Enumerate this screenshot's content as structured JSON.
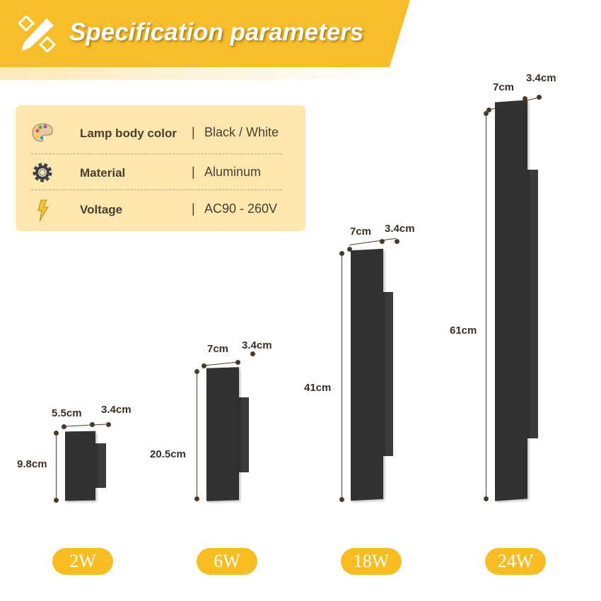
{
  "header": {
    "title": "Specification parameters",
    "icon": "pencil-ruler-icon",
    "color": "#f8bd2a"
  },
  "specs": [
    {
      "icon": "palette-icon",
      "label": "Lamp body color",
      "separator": "|",
      "value": "Black / White"
    },
    {
      "icon": "gear-icon",
      "label": "Material",
      "separator": "|",
      "value": "Aluminum"
    },
    {
      "icon": "lightning-icon",
      "label": "Voltage",
      "separator": "|",
      "value": "AC90 - 260V"
    }
  ],
  "models": [
    {
      "power": "2W",
      "width": "5.5cm",
      "depth": "3.4cm",
      "height": "9.8cm"
    },
    {
      "power": "6W",
      "width": "7cm",
      "depth": "3.4cm",
      "height": "20.5cm"
    },
    {
      "power": "18W",
      "width": "7cm",
      "depth": "3.4cm",
      "height": "41cm"
    },
    {
      "power": "24W",
      "width": "7cm",
      "depth": "3.4cm",
      "height": "61cm"
    }
  ],
  "colors": {
    "lamp": "#303133",
    "pill": "#f8bd22",
    "panel_bg": "#fde7ae"
  }
}
